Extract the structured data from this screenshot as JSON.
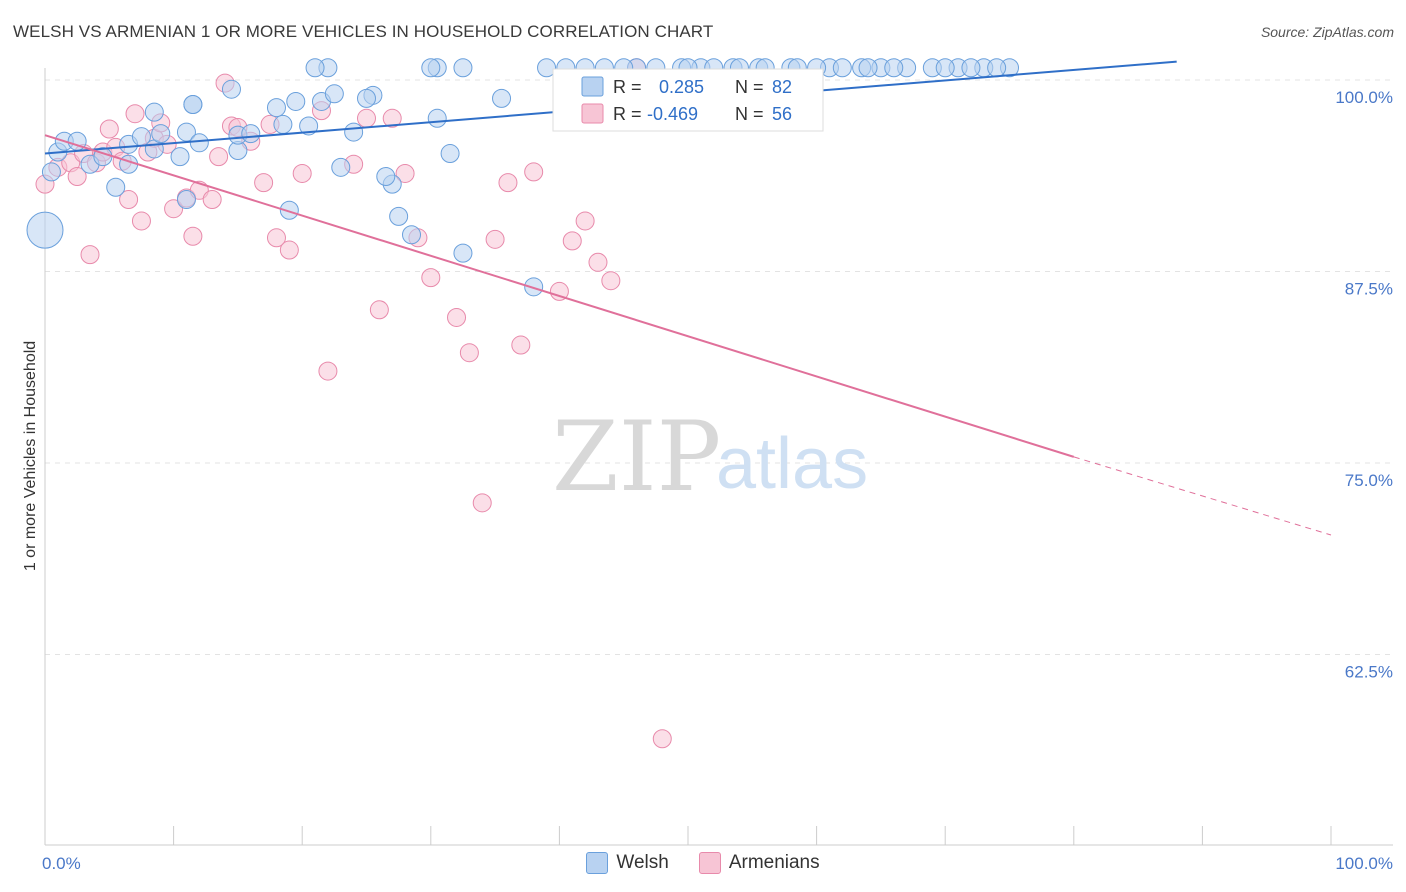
{
  "title": "WELSH VS ARMENIAN 1 OR MORE VEHICLES IN HOUSEHOLD CORRELATION CHART",
  "source": "Source: ZipAtlas.com",
  "watermark": {
    "zip": "ZIP",
    "atlas": "atlas"
  },
  "colors": {
    "welsh": "#6aa0dc",
    "welsh_fill": "#b8d2f1",
    "welsh_line": "#2f6fc8",
    "armenian": "#e88aab",
    "armenian_fill": "#f7c5d5",
    "armenian_line": "#e0709a",
    "tick": "#4a78c8"
  },
  "legend": {
    "welsh": {
      "r_label": "R =",
      "r_value": "0.285",
      "n_label": "N =",
      "n_value": "82"
    },
    "armenian": {
      "r_label": "R =",
      "r_value": "-0.469",
      "n_label": "N =",
      "n_value": "56"
    }
  },
  "bottom_legend": {
    "welsh": "Welsh",
    "armenian": "Armenians"
  },
  "chart_data": {
    "type": "scatter",
    "title": "WELSH VS ARMENIAN 1 OR MORE VEHICLES IN HOUSEHOLD CORRELATION CHART",
    "xlabel": "",
    "ylabel": "1 or more Vehicles in Household",
    "xlim": [
      0,
      100
    ],
    "ylim": [
      51,
      102
    ],
    "x_tick_labels": [
      "0.0%",
      "100.0%"
    ],
    "y_ticks": [
      62.5,
      75.0,
      87.5,
      100.0
    ],
    "y_tick_labels": [
      "62.5%",
      "75.0%",
      "87.5%",
      "100.0%"
    ],
    "series": [
      {
        "name": "Welsh",
        "R": 0.285,
        "N": 82,
        "trend": {
          "x": [
            0,
            88
          ],
          "y": [
            95.2,
            101.2
          ]
        },
        "points": [
          [
            0,
            90.2
          ],
          [
            0.5,
            94.0
          ],
          [
            1,
            95.3
          ],
          [
            1.5,
            96.0
          ],
          [
            2.5,
            96.0
          ],
          [
            3.5,
            94.5
          ],
          [
            4.5,
            95.0
          ],
          [
            5.5,
            93.0
          ],
          [
            6.5,
            95.8
          ],
          [
            6.5,
            94.5
          ],
          [
            7.5,
            96.3
          ],
          [
            8.5,
            95.5
          ],
          [
            8.5,
            97.9
          ],
          [
            9,
            96.5
          ],
          [
            10.5,
            95.0
          ],
          [
            11,
            92.2
          ],
          [
            11,
            96.6
          ],
          [
            12,
            95.9
          ],
          [
            11.5,
            98.4
          ],
          [
            11.5,
            98.4
          ],
          [
            14.5,
            99.4
          ],
          [
            15,
            95.4
          ],
          [
            15,
            96.4
          ],
          [
            16,
            96.5
          ],
          [
            18,
            98.2
          ],
          [
            18.5,
            97.1
          ],
          [
            19,
            91.5
          ],
          [
            19.5,
            98.6
          ],
          [
            20.5,
            97.0
          ],
          [
            21.5,
            98.6
          ],
          [
            22.5,
            99.1
          ],
          [
            23,
            94.3
          ],
          [
            25.5,
            99.0
          ],
          [
            27,
            93.2
          ],
          [
            27.5,
            91.1
          ],
          [
            30.5,
            100.8
          ],
          [
            30.5,
            97.5
          ],
          [
            31.5,
            95.2
          ],
          [
            32.5,
            100.8
          ],
          [
            32.5,
            88.7
          ],
          [
            35.5,
            98.8
          ],
          [
            38,
            86.5
          ],
          [
            39,
            100.8
          ],
          [
            40.5,
            100.8
          ],
          [
            42,
            100.8
          ],
          [
            43.5,
            100.8
          ],
          [
            46,
            100.8
          ],
          [
            47.5,
            100.8
          ],
          [
            49.5,
            100.8
          ],
          [
            51,
            100.8
          ],
          [
            53.5,
            100.8
          ],
          [
            55.5,
            100.8
          ],
          [
            58,
            100.8
          ],
          [
            61,
            100.8
          ],
          [
            63.5,
            100.8
          ],
          [
            65,
            100.8
          ],
          [
            67,
            100.8
          ],
          [
            69,
            100.8
          ],
          [
            71,
            100.8
          ],
          [
            73,
            100.8
          ],
          [
            75,
            100.8
          ],
          [
            48,
            97.9
          ],
          [
            28.5,
            89.9
          ],
          [
            26.5,
            93.7
          ],
          [
            25,
            98.8
          ],
          [
            24,
            96.6
          ],
          [
            22,
            100.8
          ],
          [
            21,
            100.8
          ],
          [
            50,
            100.8
          ],
          [
            45,
            100.8
          ],
          [
            52,
            100.8
          ],
          [
            54,
            100.8
          ],
          [
            56,
            100.8
          ],
          [
            58.5,
            100.8
          ],
          [
            60,
            100.8
          ],
          [
            62,
            100.8
          ],
          [
            64,
            100.8
          ],
          [
            66,
            100.8
          ],
          [
            70,
            100.8
          ],
          [
            72,
            100.8
          ],
          [
            74,
            100.8
          ],
          [
            30,
            100.8
          ]
        ]
      },
      {
        "name": "Armenians",
        "R": -0.469,
        "N": 56,
        "trend": {
          "x": [
            0,
            80
          ],
          "y": [
            96.4,
            75.4
          ],
          "dashed_to": [
            100,
            70.3
          ]
        },
        "points": [
          [
            0,
            93.2
          ],
          [
            1,
            94.3
          ],
          [
            2,
            94.6
          ],
          [
            2.5,
            93.7
          ],
          [
            3,
            95.2
          ],
          [
            3.5,
            88.6
          ],
          [
            4,
            94.6
          ],
          [
            4.5,
            95.3
          ],
          [
            5,
            96.8
          ],
          [
            5.5,
            95.6
          ],
          [
            6,
            94.7
          ],
          [
            6.5,
            92.2
          ],
          [
            7,
            97.8
          ],
          [
            7.5,
            90.8
          ],
          [
            8,
            95.3
          ],
          [
            8.5,
            96.2
          ],
          [
            9,
            97.2
          ],
          [
            9.5,
            95.8
          ],
          [
            10,
            91.6
          ],
          [
            11,
            92.3
          ],
          [
            11.5,
            89.8
          ],
          [
            12,
            92.8
          ],
          [
            13,
            92.2
          ],
          [
            13.5,
            95.0
          ],
          [
            14,
            99.8
          ],
          [
            14.5,
            97.0
          ],
          [
            15,
            96.9
          ],
          [
            16,
            96.0
          ],
          [
            17,
            93.3
          ],
          [
            17.5,
            97.1
          ],
          [
            18,
            89.7
          ],
          [
            19,
            88.9
          ],
          [
            20,
            93.9
          ],
          [
            21.5,
            98.0
          ],
          [
            22,
            81.0
          ],
          [
            24,
            94.5
          ],
          [
            25,
            97.5
          ],
          [
            26,
            85.0
          ],
          [
            27,
            97.5
          ],
          [
            28,
            93.9
          ],
          [
            29,
            89.7
          ],
          [
            30,
            87.1
          ],
          [
            32,
            84.5
          ],
          [
            33,
            82.2
          ],
          [
            34,
            72.4
          ],
          [
            35,
            89.6
          ],
          [
            36,
            93.3
          ],
          [
            37,
            82.7
          ],
          [
            38,
            94.0
          ],
          [
            40,
            86.2
          ],
          [
            41,
            89.5
          ],
          [
            42,
            90.8
          ],
          [
            43,
            88.1
          ],
          [
            44,
            86.9
          ],
          [
            46,
            100.8
          ],
          [
            48,
            57.0
          ]
        ]
      }
    ]
  }
}
